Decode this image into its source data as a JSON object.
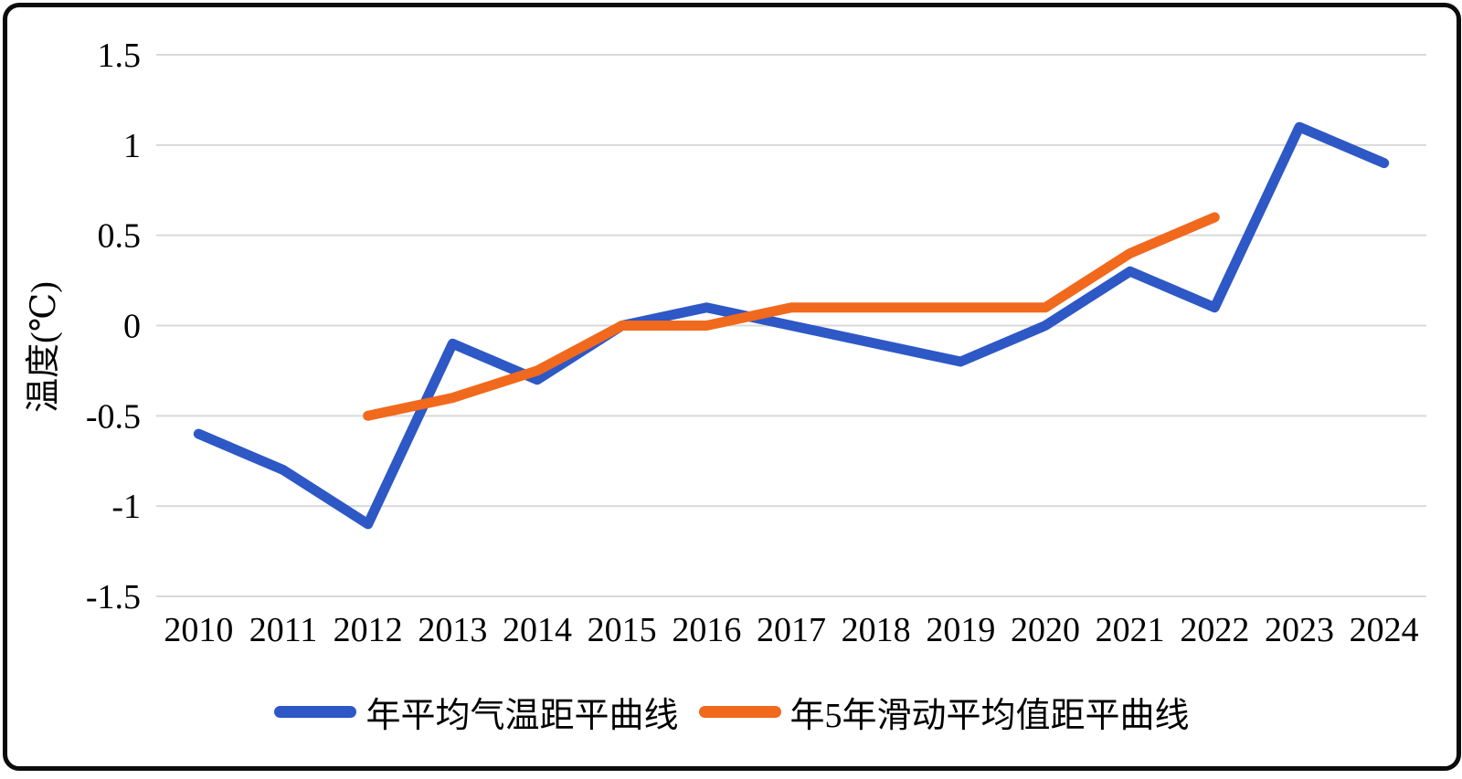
{
  "chart_data": {
    "type": "line",
    "title": "",
    "xlabel": "",
    "ylabel": "温度(℃)",
    "x": [
      "2010",
      "2011",
      "2012",
      "2013",
      "2014",
      "2015",
      "2016",
      "2017",
      "2018",
      "2019",
      "2020",
      "2021",
      "2022",
      "2023",
      "2024"
    ],
    "yticks": [
      "1.5",
      "1",
      "0.5",
      "0",
      "-0.5",
      "-1",
      "-1.5"
    ],
    "ylim": [
      -1.5,
      1.5
    ],
    "grid": true,
    "legend_position": "bottom",
    "colors": {
      "gridline": "#d9d9d9",
      "text": "#000000",
      "frame_border": "#0c0c0c"
    },
    "series": [
      {
        "name": "年平均气温距平曲线",
        "color": "#2d58c5",
        "values": [
          -0.6,
          -0.8,
          -1.1,
          -0.1,
          -0.3,
          0,
          0.1,
          0,
          -0.1,
          -0.2,
          0,
          0.3,
          0.1,
          1.1,
          0.9
        ]
      },
      {
        "name": "年5年滑动平均值距平曲线",
        "color": "#f1691d",
        "values": [
          null,
          null,
          -0.5,
          -0.4,
          -0.25,
          0,
          0,
          0.1,
          0.1,
          0.1,
          0.1,
          0.4,
          0.6,
          null,
          null
        ]
      }
    ]
  }
}
